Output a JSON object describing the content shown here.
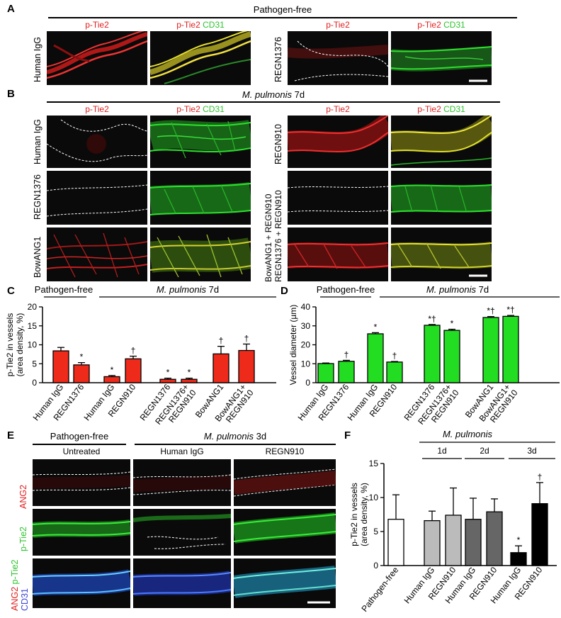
{
  "panels": {
    "A": {
      "letter": "A",
      "header": "Pathogen-free",
      "col_labels": {
        "ptie2": "p-Tie2",
        "ptie2_cd31_red": "p-Tie2",
        "ptie2_cd31_green": "CD31"
      },
      "rows": [
        "Human IgG",
        "REGN1376"
      ]
    },
    "B": {
      "letter": "B",
      "header_italic": "M. pulmonis",
      "header_rest": "7d",
      "left_rows": [
        "Human IgG",
        "REGN1376",
        "BowANG1"
      ],
      "right_rows": [
        "REGN910",
        "REGN1376 + REGN910",
        "BowANG1 + REGN910"
      ]
    },
    "E": {
      "letter": "E",
      "header_left": "Pathogen-free",
      "header_right_italic": "M. pulmonis",
      "header_right_rest": "3d",
      "col_labels": [
        "Untreated",
        "Human IgG",
        "REGN910"
      ],
      "row_labels": {
        "ang2": "ANG2",
        "ptie2": "p-Tie2",
        "merge_ang2": "ANG2",
        "merge_ptie2": "p-Tie2",
        "merge_cd31": "CD31"
      }
    }
  },
  "chart_data": [
    {
      "panel": "C",
      "type": "bar",
      "ylabel": "p-Tie2 in vessels (area density, %)",
      "ylim": [
        0,
        20
      ],
      "yticks": [
        0,
        5,
        10,
        15,
        20
      ],
      "group_labels": [
        {
          "italic": "",
          "text": "Pathogen-free"
        },
        {
          "italic": "M. pulmonis",
          "text": "7d"
        }
      ],
      "categories": [
        "Human IgG",
        "REGN1376",
        "Human IgG",
        "REGN910",
        "REGN1376",
        "REGN1376+ REGN910",
        "BowANG1",
        "BowANG1+ REGN910"
      ],
      "values": [
        8.4,
        4.7,
        1.6,
        6.3,
        0.9,
        0.9,
        7.6,
        8.5
      ],
      "errors": [
        0.9,
        0.6,
        0.3,
        0.7,
        0.3,
        0.3,
        2.0,
        1.7
      ],
      "marks": [
        "",
        "*",
        "*",
        "†",
        "*",
        "*",
        "†",
        "†"
      ],
      "color": "#ee2a1a"
    },
    {
      "panel": "D",
      "type": "bar",
      "ylabel": "Vessel diameter (µm)",
      "ylim": [
        0,
        40
      ],
      "yticks": [
        0,
        10,
        20,
        30,
        40
      ],
      "group_labels": [
        {
          "italic": "",
          "text": "Pathogen-free"
        },
        {
          "italic": "M. pulmonis",
          "text": "7d"
        }
      ],
      "categories": [
        "Human IgG",
        "REGN1376",
        "Human IgG",
        "REGN910",
        "REGN1376",
        "REGN1376+ REGN910",
        "BowANG1",
        "BowANG1+ REGN910"
      ],
      "values": [
        10.1,
        11.3,
        25.8,
        10.9,
        30.3,
        27.6,
        34.4,
        35.0
      ],
      "errors": [
        0.3,
        0.5,
        0.6,
        0.3,
        0.4,
        0.6,
        0.5,
        0.5
      ],
      "marks": [
        "",
        "†",
        "*",
        "†",
        "*†",
        "*",
        "*†",
        "*†"
      ],
      "color": "#22dd22"
    },
    {
      "panel": "F",
      "type": "bar",
      "ylabel": "p-Tie2 in vessels (area density, %)",
      "ylim": [
        0,
        15
      ],
      "yticks": [
        0,
        5,
        10,
        15
      ],
      "header_italic": "M. pulmonis",
      "group_labels": [
        "1d",
        "2d",
        "3d"
      ],
      "categories": [
        "Pathogen-free",
        "Human IgG",
        "REGN910",
        "Human IgG",
        "REGN910",
        "Human IgG",
        "REGN910"
      ],
      "values": [
        6.8,
        6.6,
        7.4,
        6.8,
        7.9,
        1.9,
        9.1
      ],
      "errors": [
        3.6,
        1.4,
        4.0,
        3.1,
        1.9,
        1.0,
        3.1
      ],
      "marks": [
        "",
        "",
        "",
        "",
        "",
        "*",
        "†"
      ],
      "colors": [
        "#ffffff",
        "#bbbbbb",
        "#bbbbbb",
        "#666666",
        "#666666",
        "#000000",
        "#000000"
      ]
    }
  ]
}
